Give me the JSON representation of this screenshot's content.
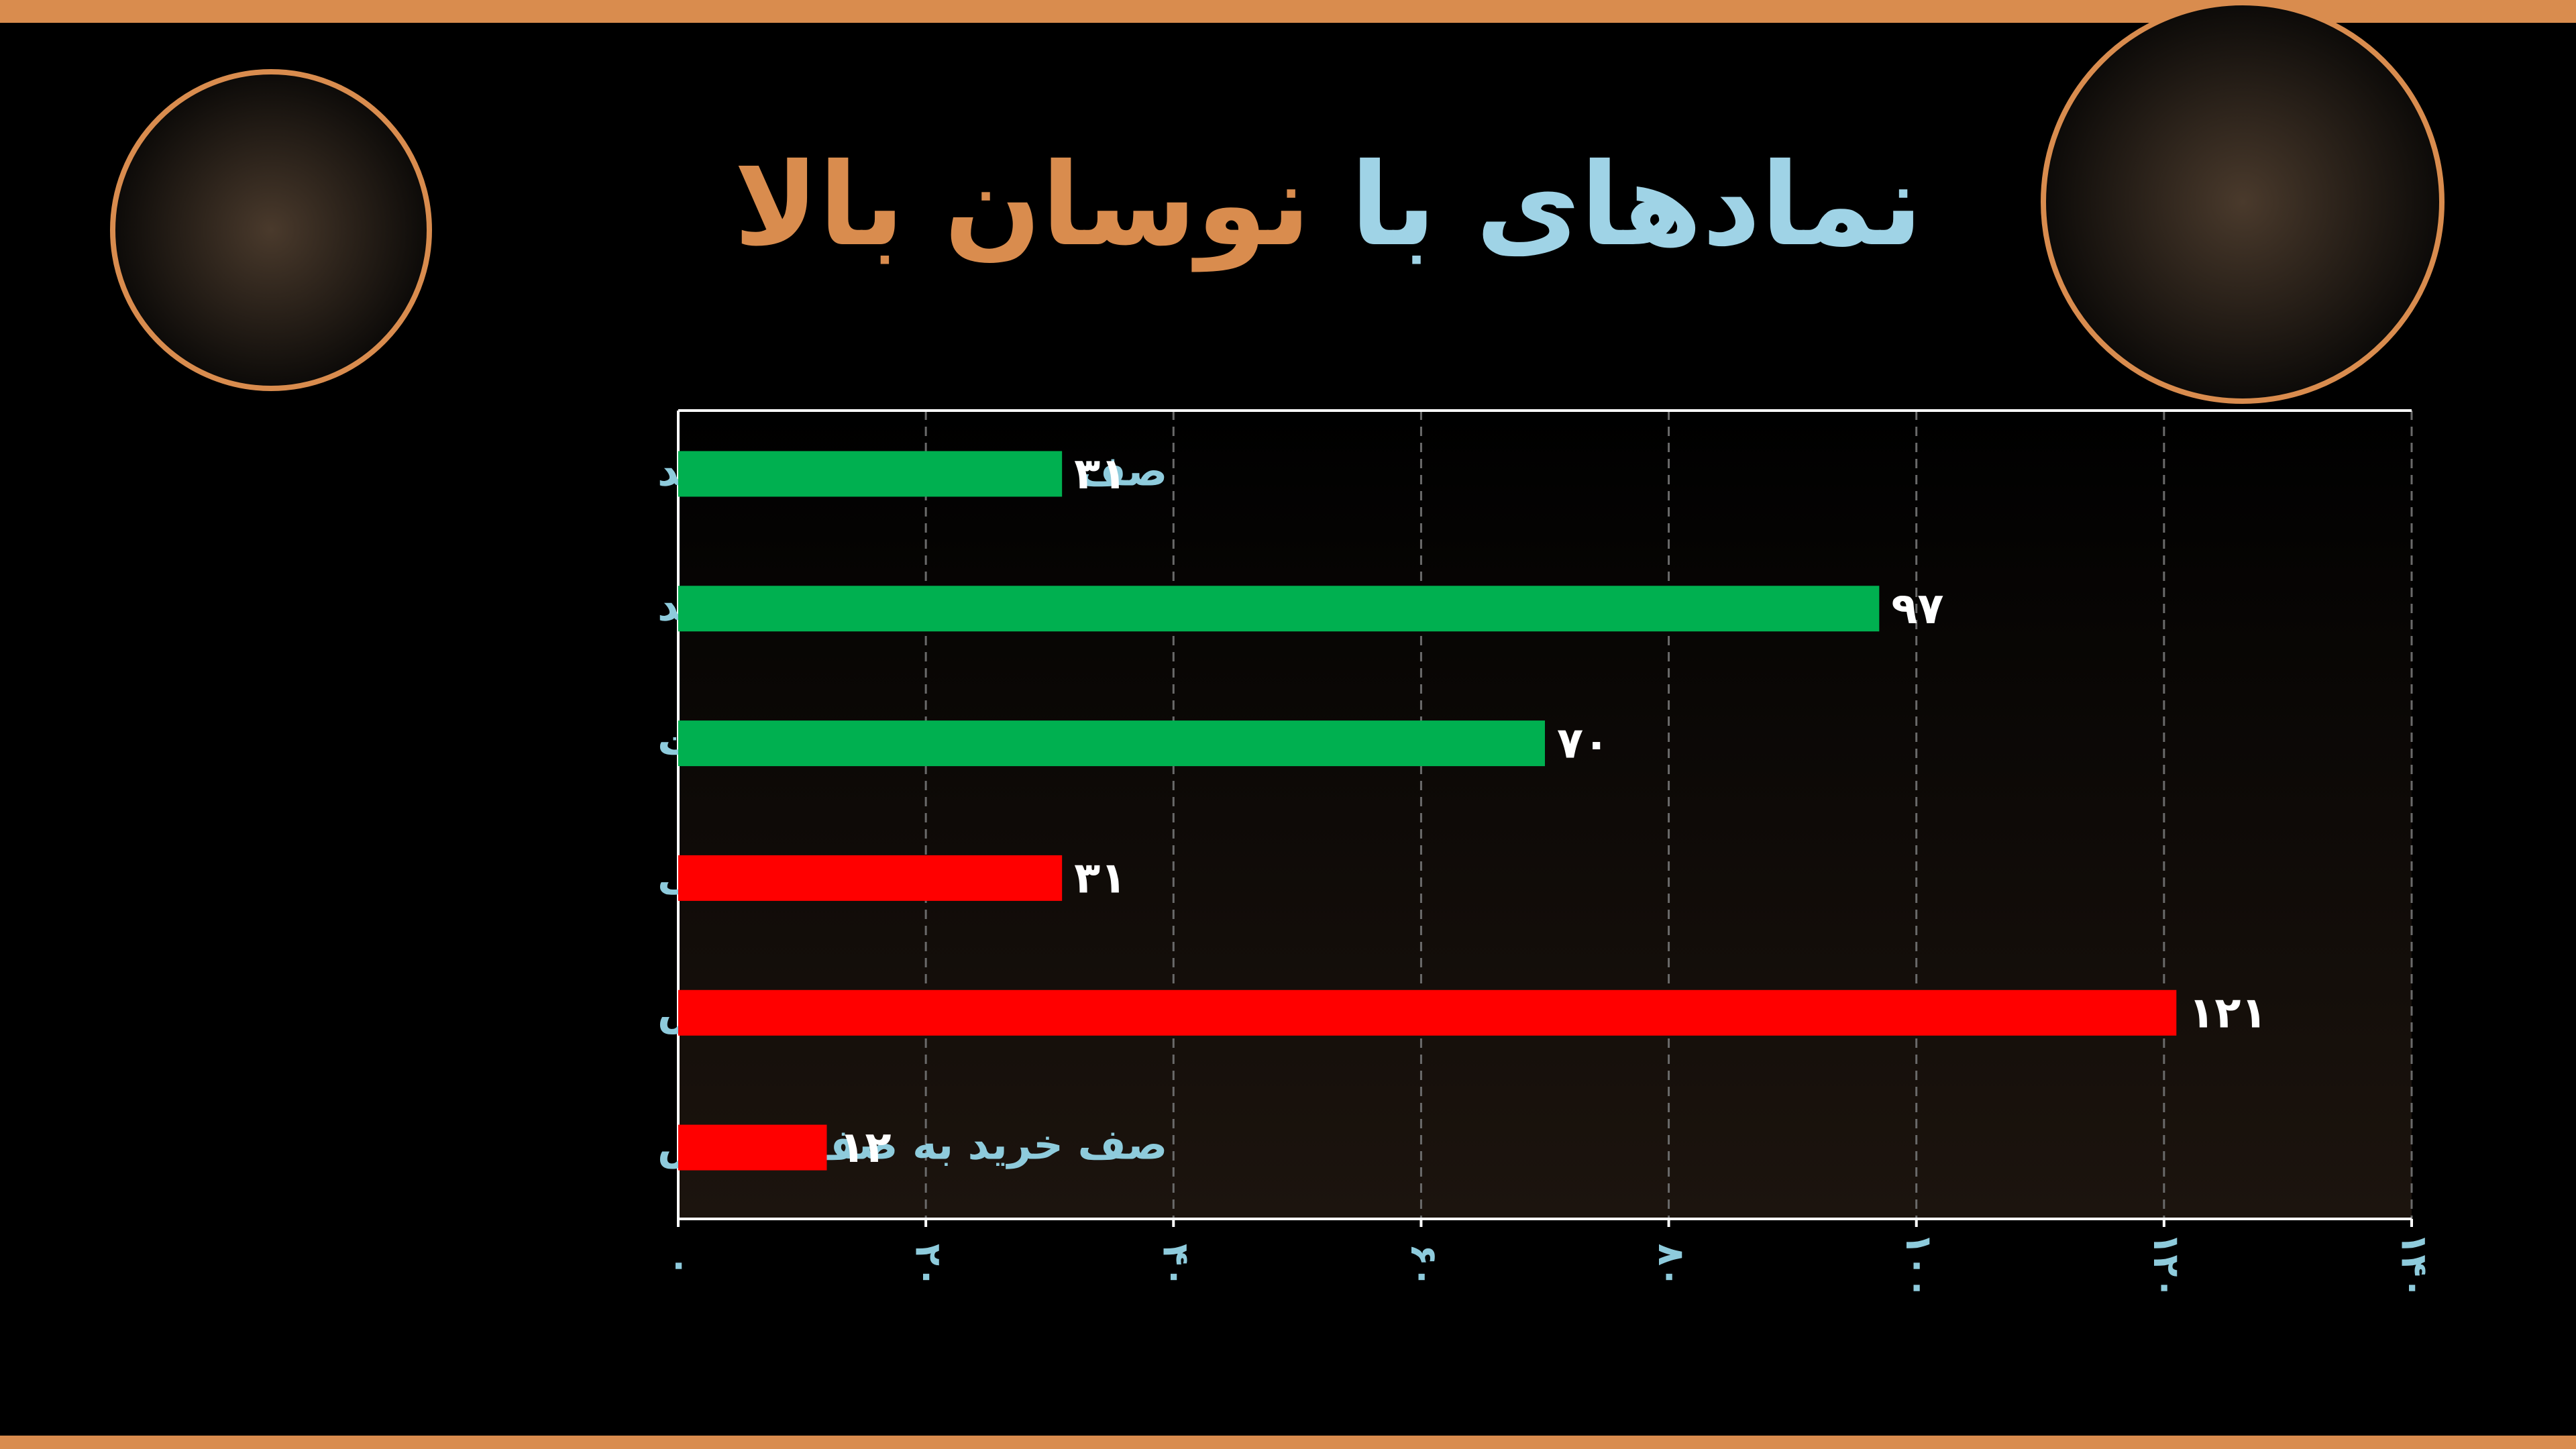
{
  "chart_data": {
    "type": "bar",
    "orientation": "horizontal",
    "title": [
      "نمادهای با",
      "نوسان بالا"
    ],
    "title_colors": [
      "#9fd3e6",
      "#d98c4e"
    ],
    "categories": [
      "صف فروش به صف خرید",
      "منفی به صف خرید",
      "صف فروش به مثبت",
      "صف خرید به منفی",
      "مثبت به صف فروش",
      "صف خرید به صف فروش"
    ],
    "values": [
      31,
      97,
      70,
      31,
      121,
      12
    ],
    "value_labels": [
      "۳۱",
      "۹۷",
      "۷۰",
      "۳۱",
      "۱۲۱",
      "۱۲"
    ],
    "colors": [
      "#00b050",
      "#00b050",
      "#00b050",
      "#ff0000",
      "#ff0000",
      "#ff0000"
    ],
    "xlim": [
      0,
      140
    ],
    "xticks": [
      {
        "value": 0,
        "label": "۰"
      },
      {
        "value": 20,
        "label": "۲۰"
      },
      {
        "value": 40,
        "label": "۴۰"
      },
      {
        "value": 60,
        "label": "۶۰"
      },
      {
        "value": 80,
        "label": "۸۰"
      },
      {
        "value": 100,
        "label": "۱۰۰"
      },
      {
        "value": 120,
        "label": "۱۲۰"
      },
      {
        "value": 140,
        "label": "۱۴۰"
      }
    ],
    "grid": true
  }
}
